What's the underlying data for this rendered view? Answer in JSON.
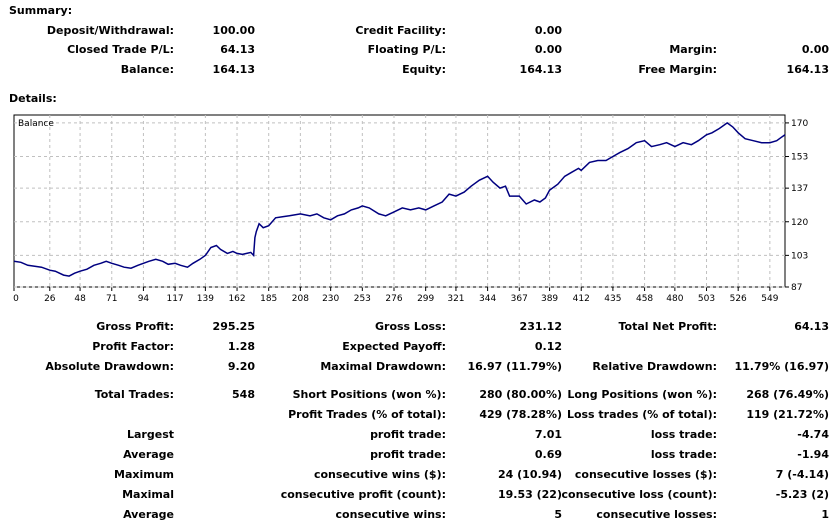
{
  "summary": {
    "title": "Summary:",
    "rows": [
      [
        {
          "label": "Deposit/Withdrawal:",
          "value": "100.00"
        },
        {
          "label": "Credit Facility:",
          "value": "0.00"
        },
        {
          "label": "",
          "value": ""
        }
      ],
      [
        {
          "label": "Closed Trade P/L:",
          "value": "64.13"
        },
        {
          "label": "Floating P/L:",
          "value": "0.00"
        },
        {
          "label": "Margin:",
          "value": "0.00"
        }
      ],
      [
        {
          "label": "Balance:",
          "value": "164.13"
        },
        {
          "label": "Equity:",
          "value": "164.13"
        },
        {
          "label": "Free Margin:",
          "value": "164.13"
        }
      ]
    ]
  },
  "details": {
    "title": "Details:",
    "rows": [
      [
        {
          "label": "Gross Profit:",
          "value": "295.25"
        },
        {
          "label": "Gross Loss:",
          "value": "231.12"
        },
        {
          "label": "Total Net Profit:",
          "value": "64.13"
        }
      ],
      [
        {
          "label": "Profit Factor:",
          "value": "1.28"
        },
        {
          "label": "Expected Payoff:",
          "value": "0.12"
        },
        {
          "label": "",
          "value": ""
        }
      ],
      [
        {
          "label": "Absolute Drawdown:",
          "value": "9.20"
        },
        {
          "label": "Maximal Drawdown:",
          "value": "16.97 (11.79%)"
        },
        {
          "label": "Relative Drawdown:",
          "value": "11.79% (16.97)"
        }
      ],
      [
        {
          "label": "Total Trades:",
          "value": "548"
        },
        {
          "label": "Short Positions (won %):",
          "value": "280 (80.00%)"
        },
        {
          "label": "Long Positions (won %):",
          "value": "268 (76.49%)"
        }
      ],
      [
        {
          "label": "",
          "value": ""
        },
        {
          "label": "Profit Trades (% of total):",
          "value": "429 (78.28%)"
        },
        {
          "label": "Loss trades (% of total):",
          "value": "119 (21.72%)"
        }
      ],
      [
        {
          "label": "Largest",
          "value": ""
        },
        {
          "label": "profit trade:",
          "value": "7.01"
        },
        {
          "label": "loss trade:",
          "value": "-4.74"
        }
      ],
      [
        {
          "label": "Average",
          "value": ""
        },
        {
          "label": "profit trade:",
          "value": "0.69"
        },
        {
          "label": "loss trade:",
          "value": "-1.94"
        }
      ],
      [
        {
          "label": "Maximum",
          "value": ""
        },
        {
          "label": "consecutive wins ($):",
          "value": "24 (10.94)"
        },
        {
          "label": "consecutive losses ($):",
          "value": "7 (-4.14)"
        }
      ],
      [
        {
          "label": "Maximal",
          "value": ""
        },
        {
          "label": "consecutive profit (count):",
          "value": "19.53 (22)"
        },
        {
          "label": "consecutive loss (count):",
          "value": "-5.23 (2)"
        }
      ],
      [
        {
          "label": "Average",
          "value": ""
        },
        {
          "label": "consecutive wins:",
          "value": "5"
        },
        {
          "label": "consecutive losses:",
          "value": "1"
        }
      ]
    ]
  },
  "colors": {
    "line": "#000080",
    "grid": "#c0c0c0",
    "frame": "#000000"
  },
  "chart_data": {
    "type": "line",
    "legend": "Balance",
    "xlim": [
      0,
      560
    ],
    "ylim": [
      87,
      174
    ],
    "x_ticks": [
      0,
      26,
      48,
      71,
      94,
      117,
      139,
      162,
      185,
      208,
      230,
      253,
      276,
      299,
      321,
      344,
      367,
      389,
      412,
      435,
      458,
      480,
      503,
      526,
      549
    ],
    "y_ticks": [
      87,
      103,
      120,
      137,
      153,
      170
    ],
    "series": [
      {
        "values": [
          [
            0,
            100
          ],
          [
            5,
            99.5
          ],
          [
            10,
            98
          ],
          [
            15,
            97.5
          ],
          [
            20,
            97
          ],
          [
            26,
            95.5
          ],
          [
            30,
            95
          ],
          [
            36,
            93
          ],
          [
            40,
            92.5
          ],
          [
            44,
            94
          ],
          [
            48,
            95
          ],
          [
            53,
            96
          ],
          [
            58,
            98
          ],
          [
            63,
            99
          ],
          [
            67,
            100
          ],
          [
            71,
            99
          ],
          [
            76,
            98
          ],
          [
            80,
            97
          ],
          [
            85,
            96.5
          ],
          [
            90,
            98
          ],
          [
            94,
            99
          ],
          [
            98,
            100
          ],
          [
            103,
            101
          ],
          [
            108,
            100
          ],
          [
            112,
            98.5
          ],
          [
            117,
            99
          ],
          [
            121,
            98
          ],
          [
            126,
            97
          ],
          [
            130,
            99
          ],
          [
            135,
            101
          ],
          [
            139,
            103
          ],
          [
            143,
            107
          ],
          [
            147,
            108
          ],
          [
            150,
            106
          ],
          [
            155,
            104
          ],
          [
            159,
            105
          ],
          [
            162,
            104
          ],
          [
            166,
            103.5
          ],
          [
            169,
            104
          ],
          [
            172,
            104.5
          ],
          [
            174,
            103
          ],
          [
            175,
            112
          ],
          [
            176,
            115
          ],
          [
            178,
            119
          ],
          [
            181,
            117
          ],
          [
            185,
            118
          ],
          [
            190,
            122
          ],
          [
            195,
            122.5
          ],
          [
            200,
            123
          ],
          [
            208,
            124
          ],
          [
            215,
            123
          ],
          [
            220,
            124
          ],
          [
            225,
            122
          ],
          [
            230,
            121
          ],
          [
            235,
            123
          ],
          [
            240,
            124
          ],
          [
            245,
            126
          ],
          [
            250,
            127
          ],
          [
            253,
            128
          ],
          [
            258,
            127
          ],
          [
            265,
            124
          ],
          [
            270,
            123
          ],
          [
            276,
            125
          ],
          [
            282,
            127
          ],
          [
            288,
            126
          ],
          [
            294,
            127
          ],
          [
            299,
            126
          ],
          [
            305,
            128
          ],
          [
            311,
            130
          ],
          [
            316,
            134
          ],
          [
            321,
            133
          ],
          [
            327,
            135
          ],
          [
            332,
            138
          ],
          [
            338,
            141
          ],
          [
            344,
            143
          ],
          [
            348,
            140
          ],
          [
            353,
            137
          ],
          [
            357,
            138
          ],
          [
            360,
            133
          ],
          [
            367,
            133
          ],
          [
            372,
            129
          ],
          [
            378,
            131
          ],
          [
            382,
            130
          ],
          [
            386,
            132
          ],
          [
            389,
            136
          ],
          [
            395,
            139
          ],
          [
            400,
            143
          ],
          [
            405,
            145
          ],
          [
            410,
            147
          ],
          [
            412,
            146
          ],
          [
            418,
            150
          ],
          [
            424,
            151
          ],
          [
            430,
            151
          ],
          [
            435,
            153
          ],
          [
            440,
            155
          ],
          [
            446,
            157
          ],
          [
            452,
            160
          ],
          [
            458,
            161
          ],
          [
            463,
            158
          ],
          [
            469,
            159
          ],
          [
            474,
            160
          ],
          [
            480,
            158
          ],
          [
            486,
            160
          ],
          [
            492,
            159
          ],
          [
            497,
            161
          ],
          [
            503,
            164
          ],
          [
            507,
            165
          ],
          [
            512,
            167
          ],
          [
            518,
            170
          ],
          [
            522,
            168
          ],
          [
            526,
            165
          ],
          [
            531,
            162
          ],
          [
            537,
            161
          ],
          [
            543,
            160
          ],
          [
            549,
            160
          ],
          [
            554,
            161
          ],
          [
            558,
            163
          ],
          [
            560,
            164
          ]
        ]
      }
    ]
  }
}
